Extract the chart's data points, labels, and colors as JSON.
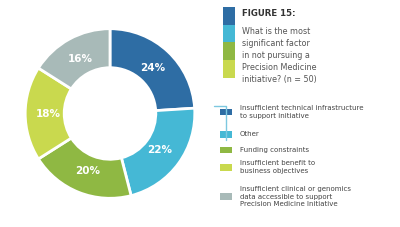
{
  "values": [
    24,
    22,
    20,
    18,
    16
  ],
  "labels": [
    "24%",
    "22%",
    "20%",
    "18%",
    "16%"
  ],
  "colors": [
    "#2E6DA4",
    "#45B8D5",
    "#8FB843",
    "#C9D94E",
    "#A8BAB8"
  ],
  "legend_labels": [
    "Insufficient technical infrastructure\nto support initiative",
    "Other",
    "Funding constraints",
    "Insufficient benefit to\nbusiness objectives",
    "Insufficient clinical or genomics\ndata accessible to support\nPrecision Medicine Initiative"
  ],
  "figure_title": "FIGURE 15:",
  "figure_subtitle": "What is the most\nsignificant factor\nin not pursuing a\nPrecision Medicine\ninitiative? (n = 50)",
  "title_box_color": "#D0E4EF",
  "stripe_colors": [
    "#2E6DA4",
    "#45B8D5",
    "#8FB843",
    "#C9D94E"
  ],
  "connector_color": "#7DC8E0",
  "start_angle": 90,
  "bg_color": "#ffffff"
}
